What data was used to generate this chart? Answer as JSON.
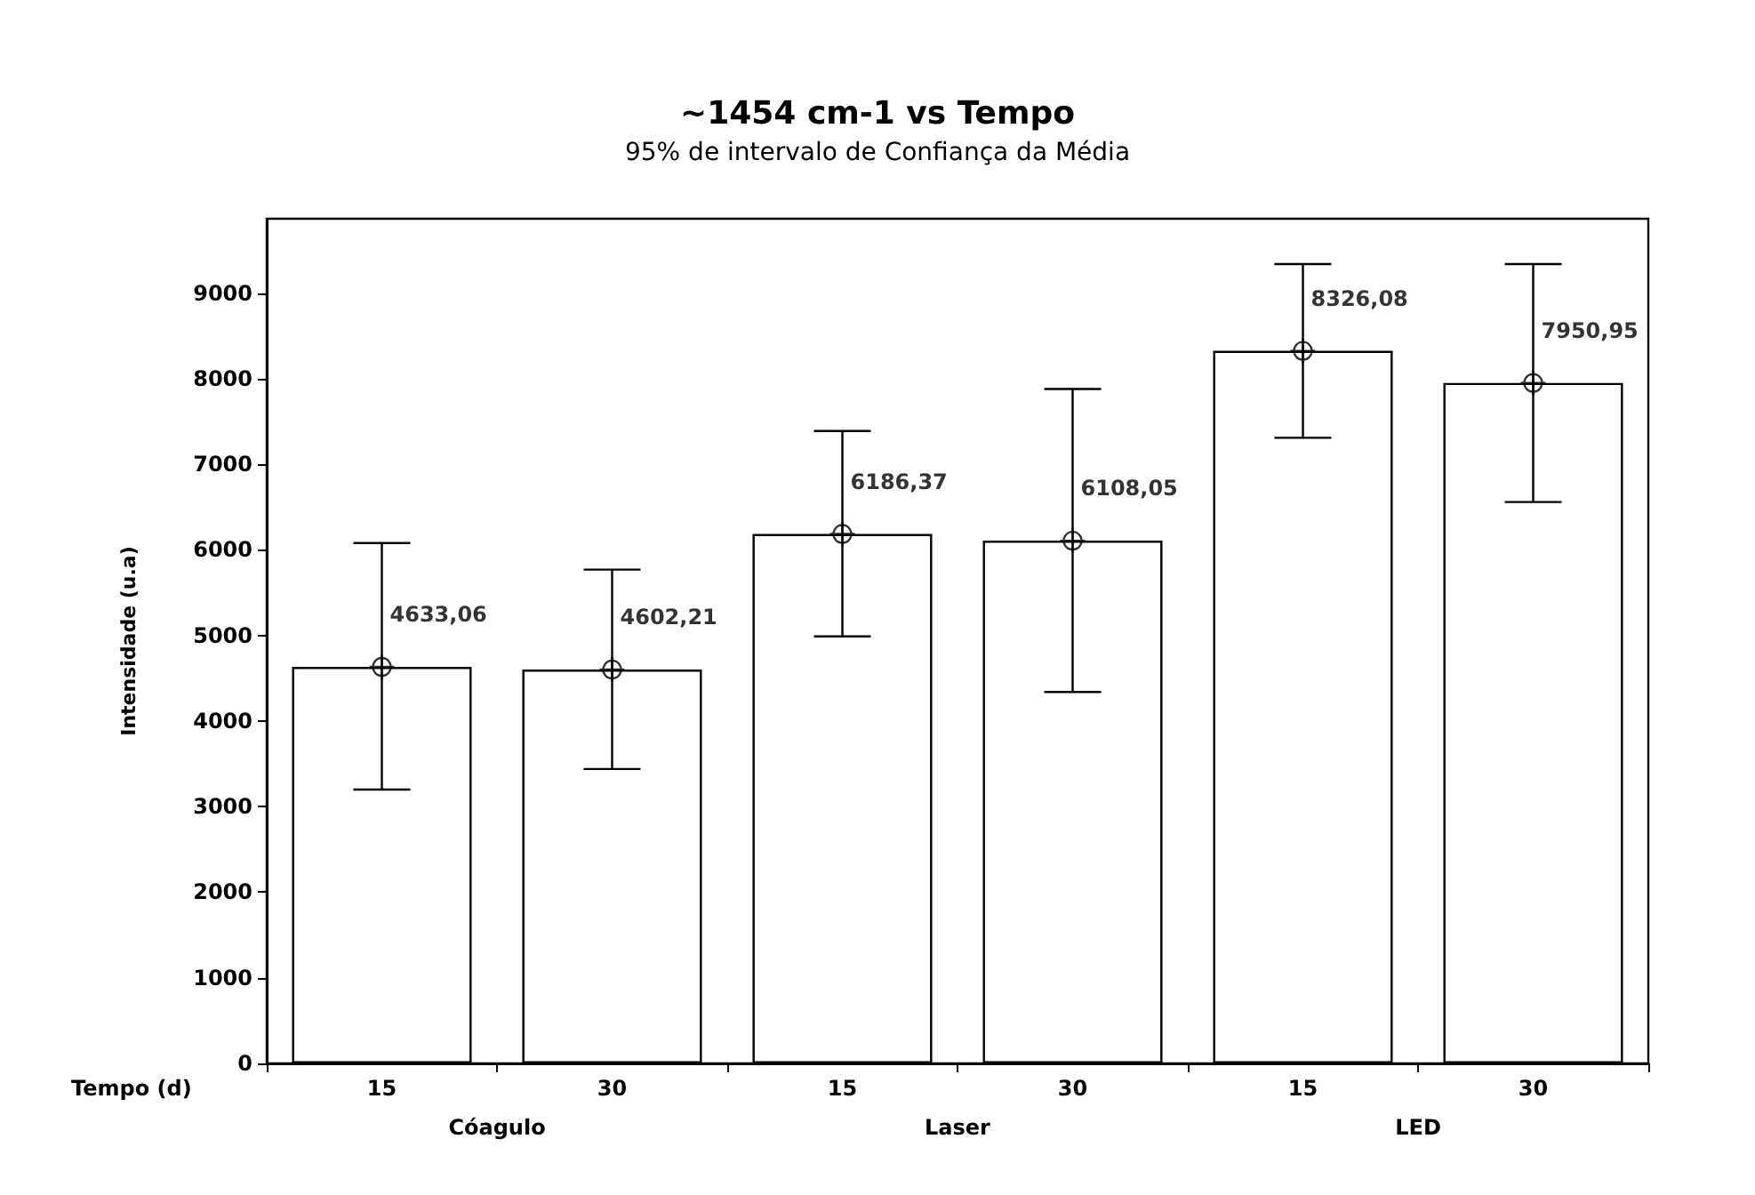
{
  "chart_data": {
    "type": "bar",
    "title": "~1454 cm-1 vs Tempo",
    "subtitle": "95% de intervalo de Confiança da Média",
    "xlabel": "Tempo (d)",
    "ylabel": "Intensidade (u.a)",
    "categories": [
      "15",
      "30",
      "15",
      "30",
      "15",
      "30"
    ],
    "series": [
      {
        "color": "#ffffff",
        "values": [
          4633.06,
          4602.21,
          6186.37,
          6108.05,
          8326.08,
          7950.95
        ],
        "errors": [
          [
            3200,
            6080
          ],
          [
            3440,
            5770
          ],
          [
            4990,
            7390
          ],
          [
            4340,
            7880
          ],
          [
            7310,
            9340
          ],
          [
            6560,
            9340
          ]
        ]
      },
      {
        "type": "scatter",
        "color": "#000000",
        "values": [
          4633.06,
          4602.21,
          6186.37,
          6108.05,
          8326.08,
          7950.95
        ],
        "value_labels": [
          "4633,06",
          "4602,21",
          "6186,37",
          "6108,05",
          "8326,08",
          "7950,95"
        ]
      }
    ],
    "marker": "cross",
    "annotations": [
      "Cóagulo",
      "Laser",
      "LED"
    ],
    "ylim": [
      0,
      9870
    ],
    "yticks": [
      0,
      1000,
      2000,
      3000,
      4000,
      5000,
      6000,
      7000,
      8000,
      9000
    ]
  }
}
